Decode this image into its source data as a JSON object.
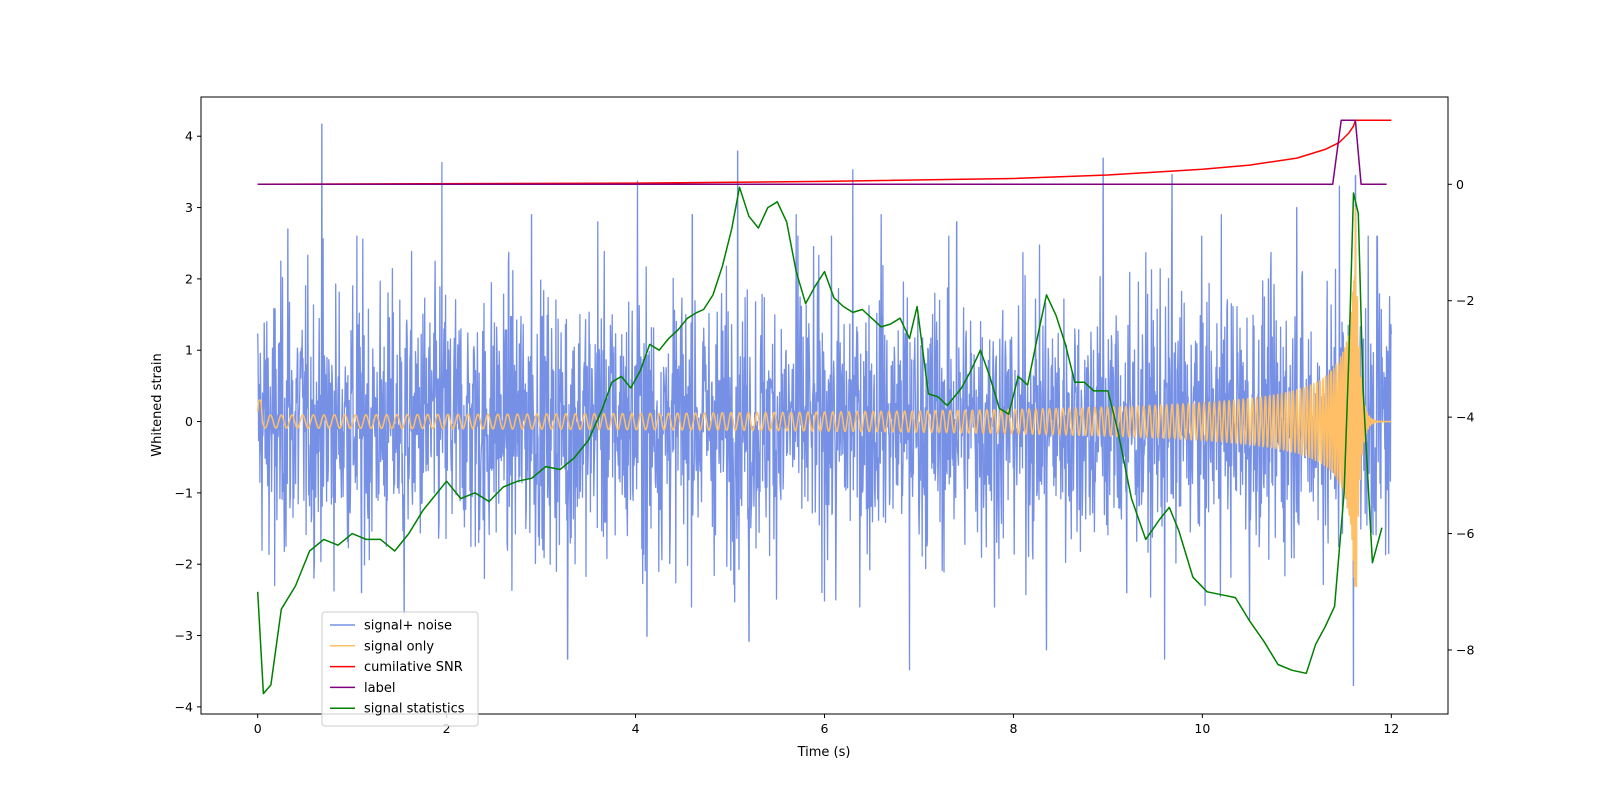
{
  "chart_data": {
    "type": "line",
    "title": "",
    "xlabel": "Time (s)",
    "ylabel": "Whitened strain",
    "y2label": "",
    "xlim": [
      -0.6,
      12.6
    ],
    "ylim": [
      -4.1,
      4.55
    ],
    "y2lim": [
      -9.1,
      1.5
    ],
    "x_ticks": [
      0,
      2,
      4,
      6,
      8,
      10,
      12
    ],
    "y_ticks": [
      -4,
      -3,
      -2,
      -1,
      0,
      1,
      2,
      3,
      4
    ],
    "y2_ticks": [
      -8,
      -6,
      -4,
      -2,
      0
    ],
    "legend_position": "lower-left",
    "series": [
      {
        "name": "signal+ noise",
        "axis": "left",
        "color": "#7690e6",
        "kind": "noise",
        "x_range": [
          0,
          12
        ],
        "typical_amplitude": 1.5,
        "spikes": [
          {
            "x": 0.68,
            "y": 4.17
          },
          {
            "x": 0.18,
            "y": -2.3
          },
          {
            "x": 0.32,
            "y": 2.7
          },
          {
            "x": 1.05,
            "y": 2.6
          },
          {
            "x": 1.1,
            "y": -2.4
          },
          {
            "x": 1.55,
            "y": -2.7
          },
          {
            "x": 1.95,
            "y": 3.63
          },
          {
            "x": 2.4,
            "y": -2.2
          },
          {
            "x": 2.9,
            "y": 2.9
          },
          {
            "x": 3.28,
            "y": -3.33
          },
          {
            "x": 3.6,
            "y": 2.8
          },
          {
            "x": 4.02,
            "y": 3.37
          },
          {
            "x": 4.12,
            "y": -3.01
          },
          {
            "x": 4.6,
            "y": 2.9
          },
          {
            "x": 5.08,
            "y": 3.79
          },
          {
            "x": 5.2,
            "y": -3.08
          },
          {
            "x": 5.7,
            "y": 2.9
          },
          {
            "x": 6.12,
            "y": -2.5
          },
          {
            "x": 6.3,
            "y": 3.53
          },
          {
            "x": 6.6,
            "y": 2.9
          },
          {
            "x": 6.9,
            "y": -3.48
          },
          {
            "x": 7.4,
            "y": 2.8
          },
          {
            "x": 7.8,
            "y": -2.6
          },
          {
            "x": 8.35,
            "y": -3.2
          },
          {
            "x": 8.95,
            "y": 3.69
          },
          {
            "x": 9.2,
            "y": -2.4
          },
          {
            "x": 9.6,
            "y": -3.33
          },
          {
            "x": 9.68,
            "y": 3.46
          },
          {
            "x": 10.2,
            "y": 2.9
          },
          {
            "x": 10.5,
            "y": -2.8
          },
          {
            "x": 11.0,
            "y": 3.0
          },
          {
            "x": 11.45,
            "y": 3.3
          },
          {
            "x": 11.6,
            "y": -3.7
          },
          {
            "x": 11.62,
            "y": 3.45
          },
          {
            "x": 11.85,
            "y": 2.6
          }
        ]
      },
      {
        "name": "signal only",
        "axis": "left",
        "color": "#ffbf66",
        "kind": "chirp",
        "x_range": [
          0,
          12
        ],
        "merger_time": 11.62,
        "peak_amplitude": 3.0
      },
      {
        "name": "cumilative SNR",
        "axis": "right",
        "color": "#ff0000",
        "kind": "line",
        "x": [
          0,
          4,
          6,
          8,
          9,
          10,
          10.5,
          11,
          11.3,
          11.45,
          11.55,
          11.6,
          11.62,
          11.65,
          12
        ],
        "values": [
          0,
          0.02,
          0.05,
          0.1,
          0.16,
          0.26,
          0.33,
          0.45,
          0.6,
          0.72,
          0.88,
          1.0,
          1.1,
          1.1,
          1.1
        ]
      },
      {
        "name": "label",
        "axis": "right",
        "color": "#800080",
        "kind": "line",
        "x": [
          0,
          11.38,
          11.47,
          11.62,
          11.68,
          11.95
        ],
        "values": [
          0,
          0,
          1.1,
          1.1,
          0,
          0
        ]
      },
      {
        "name": "signal statistics",
        "axis": "right",
        "color": "#008000",
        "kind": "line",
        "x": [
          0,
          0.06,
          0.14,
          0.25,
          0.4,
          0.55,
          0.7,
          0.85,
          1.0,
          1.15,
          1.3,
          1.45,
          1.6,
          1.75,
          1.85,
          2.0,
          2.15,
          2.3,
          2.45,
          2.6,
          2.75,
          2.9,
          3.05,
          3.2,
          3.35,
          3.5,
          3.65,
          3.75,
          3.85,
          3.95,
          4.05,
          4.15,
          4.25,
          4.35,
          4.45,
          4.55,
          4.65,
          4.72,
          4.82,
          4.92,
          5.02,
          5.1,
          5.2,
          5.3,
          5.4,
          5.5,
          5.6,
          5.7,
          5.8,
          5.9,
          6.0,
          6.1,
          6.2,
          6.3,
          6.4,
          6.5,
          6.6,
          6.7,
          6.8,
          6.9,
          6.98,
          7.1,
          7.2,
          7.3,
          7.45,
          7.55,
          7.65,
          7.75,
          7.85,
          7.95,
          8.05,
          8.15,
          8.25,
          8.35,
          8.45,
          8.55,
          8.65,
          8.75,
          8.85,
          9.0,
          9.1,
          9.25,
          9.4,
          9.55,
          9.65,
          9.75,
          9.9,
          10.05,
          10.2,
          10.35,
          10.5,
          10.65,
          10.8,
          10.95,
          11.1,
          11.2,
          11.3,
          11.4,
          11.5,
          11.55,
          11.6,
          11.65,
          11.7,
          11.8,
          11.9
        ],
        "values": [
          -7.0,
          -8.75,
          -8.6,
          -7.3,
          -6.9,
          -6.3,
          -6.1,
          -6.2,
          -6.0,
          -6.1,
          -6.1,
          -6.3,
          -6.0,
          -5.6,
          -5.4,
          -5.1,
          -5.4,
          -5.3,
          -5.45,
          -5.2,
          -5.1,
          -5.05,
          -4.85,
          -4.9,
          -4.7,
          -4.4,
          -3.85,
          -3.4,
          -3.3,
          -3.5,
          -3.2,
          -2.75,
          -2.85,
          -2.65,
          -2.5,
          -2.3,
          -2.2,
          -2.15,
          -1.9,
          -1.4,
          -0.75,
          -0.05,
          -0.55,
          -0.75,
          -0.4,
          -0.3,
          -0.65,
          -1.5,
          -2.05,
          -1.75,
          -1.5,
          -1.95,
          -2.1,
          -2.2,
          -2.15,
          -2.3,
          -2.45,
          -2.4,
          -2.3,
          -2.65,
          -2.1,
          -3.6,
          -3.65,
          -3.8,
          -3.5,
          -3.2,
          -2.85,
          -3.3,
          -3.85,
          -3.95,
          -3.3,
          -3.45,
          -2.65,
          -1.9,
          -2.25,
          -2.75,
          -3.4,
          -3.4,
          -3.55,
          -3.55,
          -4.2,
          -5.4,
          -6.1,
          -5.75,
          -5.55,
          -5.95,
          -6.75,
          -7.0,
          -7.05,
          -7.1,
          -7.5,
          -7.85,
          -8.25,
          -8.35,
          -8.4,
          -7.9,
          -7.6,
          -7.25,
          -5.3,
          -3.0,
          -0.15,
          -0.5,
          -3.5,
          -6.5,
          -5.9
        ]
      }
    ]
  }
}
